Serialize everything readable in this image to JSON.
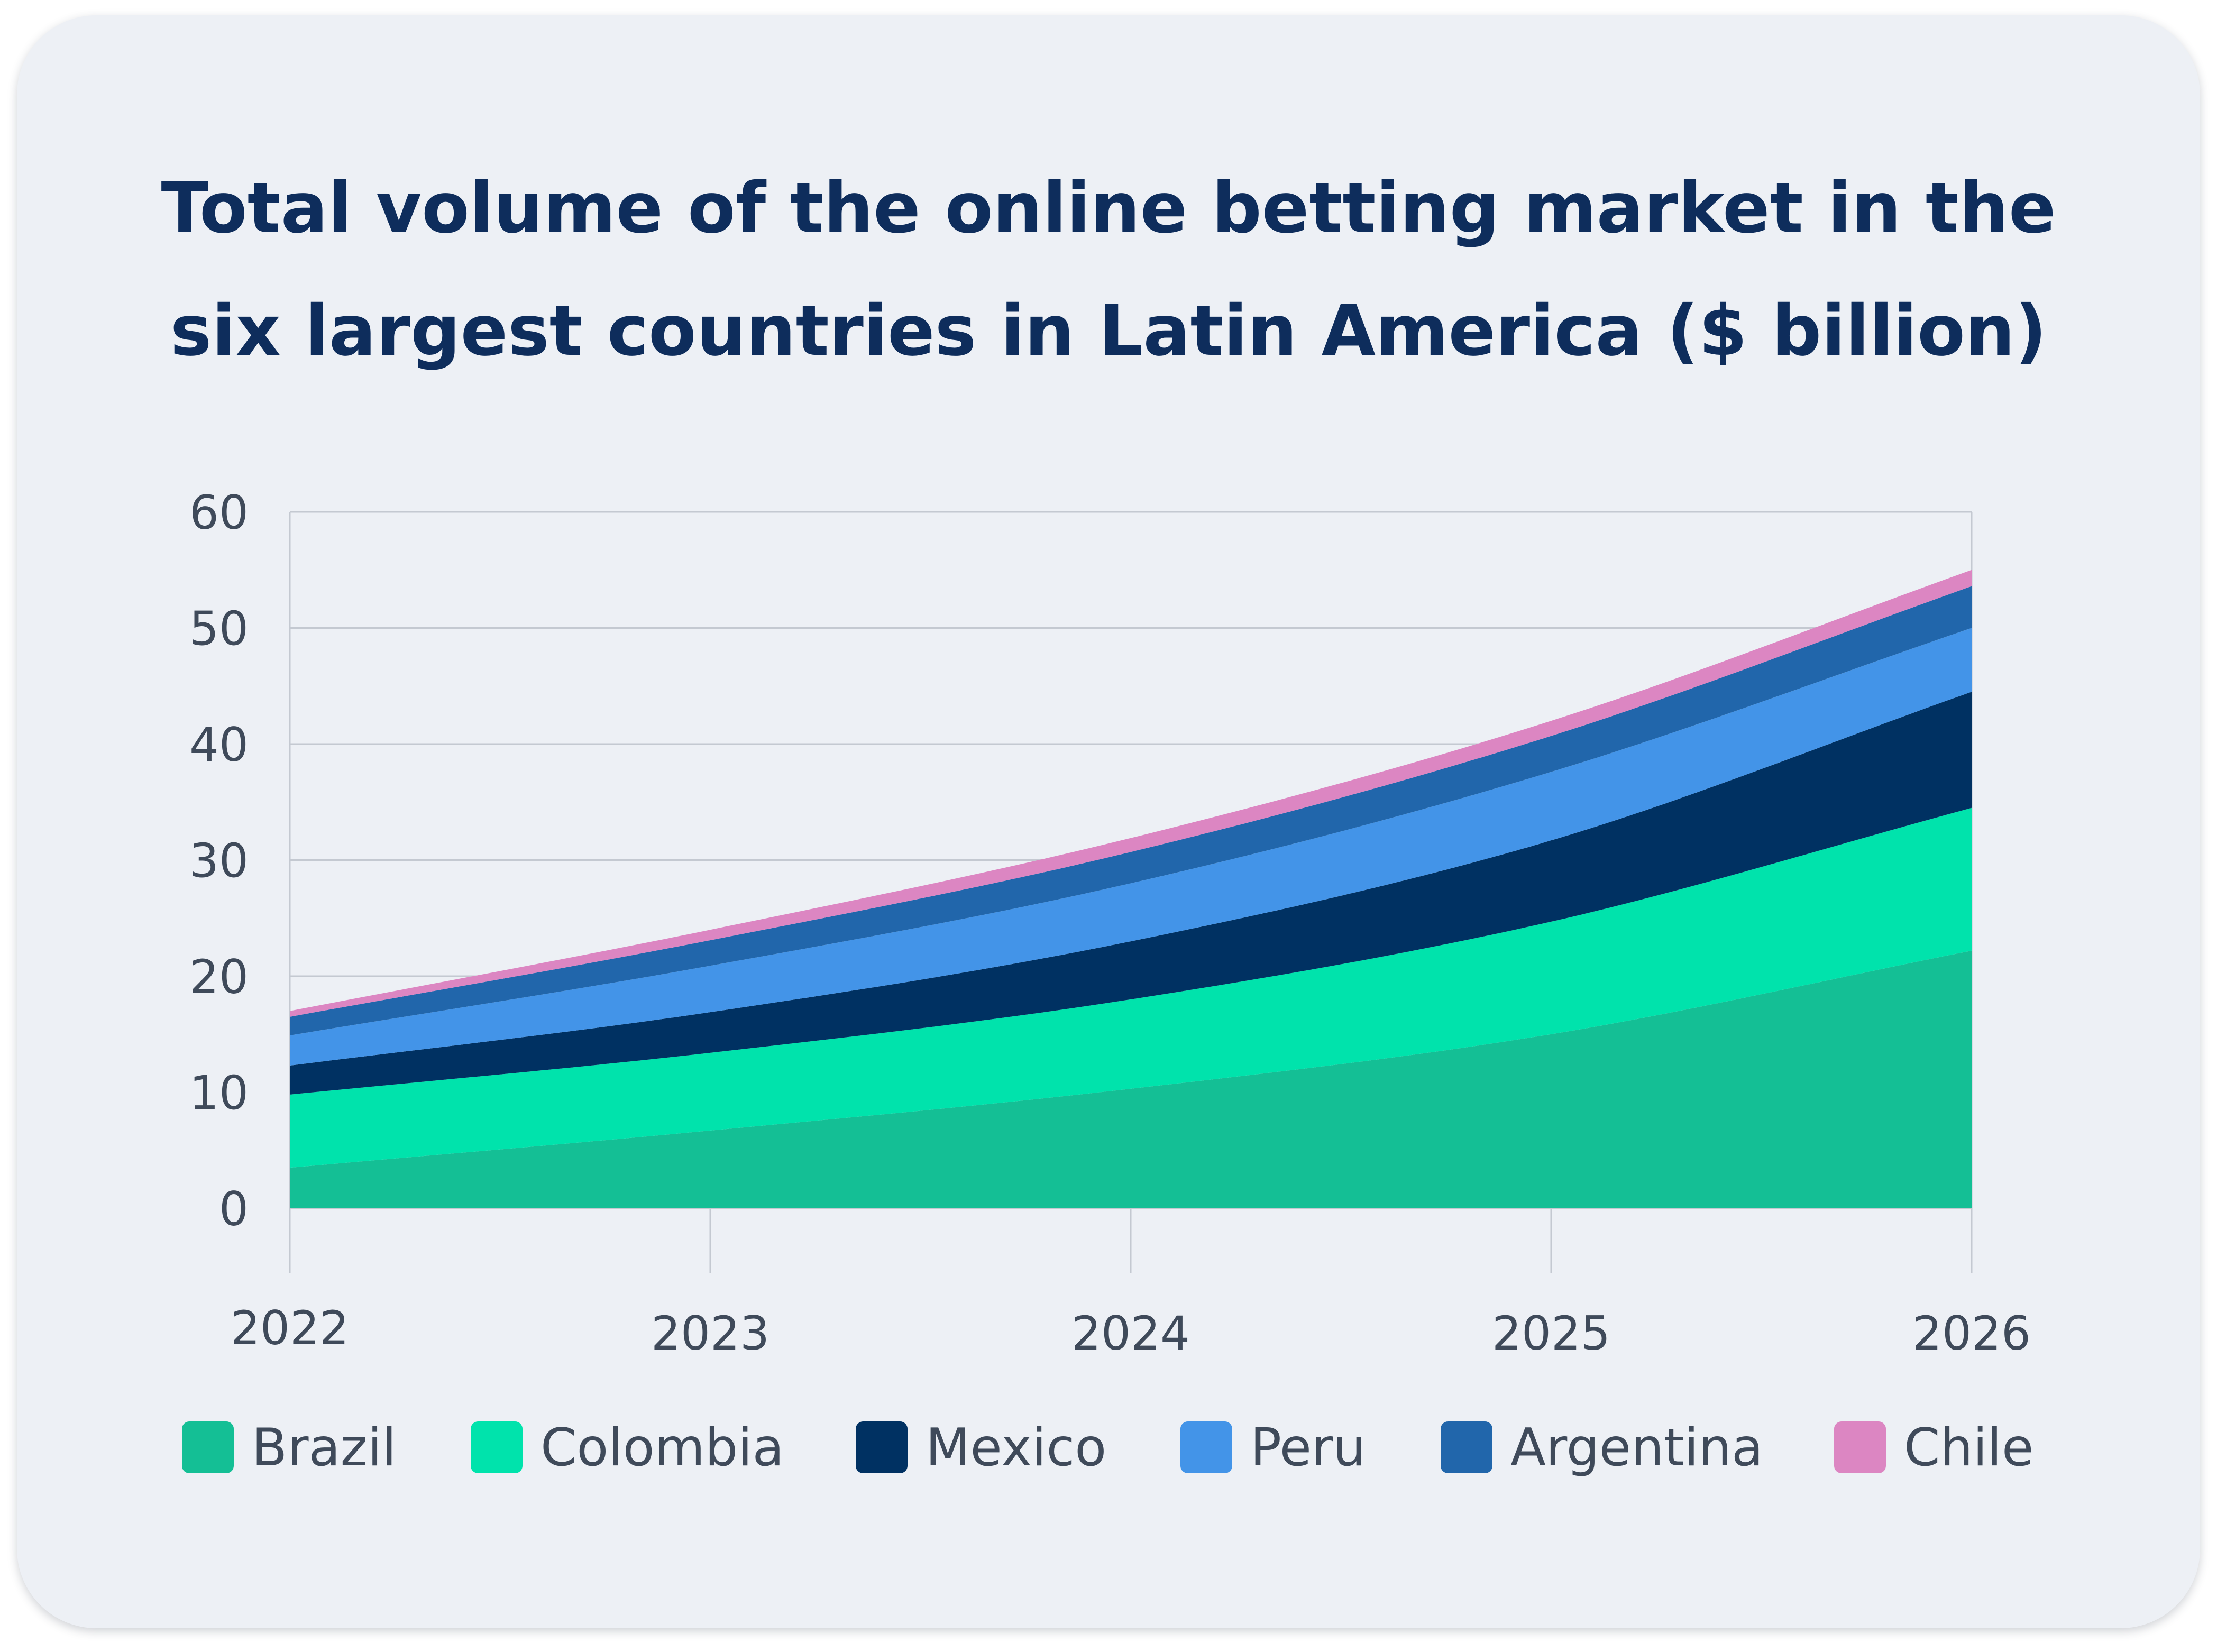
{
  "chart_data": {
    "type": "area",
    "stacked": true,
    "title_lines": [
      "Total volume of the online betting market in the",
      "six largest countries in Latin America ($ billion)"
    ],
    "x": [
      2022,
      2023,
      2024,
      2025,
      2026
    ],
    "x_tick_labels": [
      "2022",
      "2023",
      "2024",
      "2025",
      "2026"
    ],
    "y_tick_labels": [
      "0",
      "10",
      "20",
      "30",
      "40",
      "50",
      "60"
    ],
    "ylim": [
      0,
      60
    ],
    "grid": true,
    "legend_position": "bottom",
    "series": [
      {
        "name": "Brazil",
        "color": "#14bf95",
        "values": [
          3.5,
          6.7,
          10.3,
          15.0,
          22.2
        ]
      },
      {
        "name": "Colombia",
        "color": "#00e3ac",
        "values": [
          6.3,
          6.7,
          7.7,
          9.7,
          12.3
        ]
      },
      {
        "name": "Mexico",
        "color": "#003162",
        "values": [
          2.5,
          3.5,
          5.0,
          7.0,
          10.0
        ]
      },
      {
        "name": "Peru",
        "color": "#4394e8",
        "values": [
          2.6,
          4.0,
          5.0,
          5.9,
          5.5
        ]
      },
      {
        "name": "Argentina",
        "color": "#2166ab",
        "values": [
          1.6,
          2.2,
          2.7,
          3.1,
          3.6
        ]
      },
      {
        "name": "Chile",
        "color": "#dc86c2",
        "values": [
          0.5,
          0.9,
          1.2,
          1.3,
          1.4
        ]
      }
    ]
  }
}
